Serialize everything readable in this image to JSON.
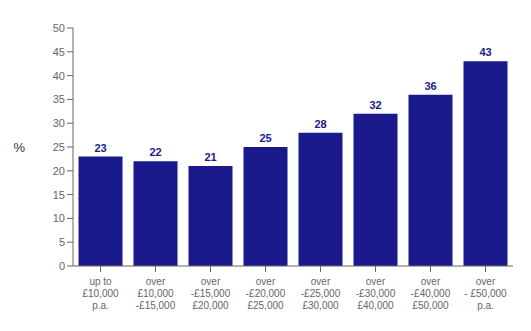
{
  "chart_data": {
    "type": "bar",
    "categories": [
      "up to\n£10,000\np.a.",
      "over\n£10,000\n-£15,000",
      "over\n-£15,000\n£20,000",
      "over\n-£20,000\n£25,000",
      "over\n-£25,000\n£30,000",
      "over\n-£30,000\n£40,000",
      "over\n-£40,000\n£50,000",
      "over\n- £50,000\np.a."
    ],
    "values": [
      23,
      22,
      21,
      25,
      28,
      32,
      36,
      43
    ],
    "color": "#1a1a8c",
    "ylabel": "%",
    "ylim": [
      0,
      50
    ],
    "yticks": [
      0,
      5,
      10,
      15,
      20,
      25,
      30,
      35,
      40,
      45,
      50
    ],
    "data_labels": true,
    "grid": false
  }
}
